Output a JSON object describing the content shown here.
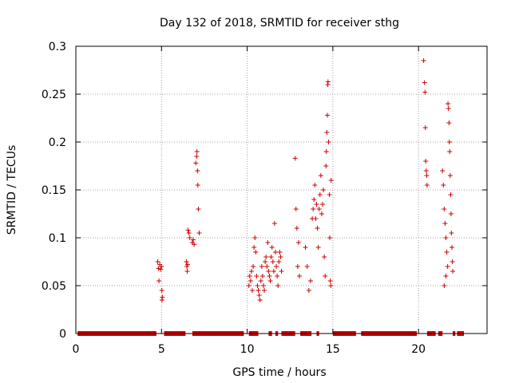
{
  "chart_data": {
    "type": "scatter",
    "title": "Day 132 of 2018, SRMTID for receiver sthg",
    "xlabel": "GPS time / hours",
    "ylabel": "SRMTID / TECUs",
    "xlim": [
      0,
      24
    ],
    "ylim": [
      0,
      0.3
    ],
    "grid": true,
    "xticks": [
      0,
      5,
      10,
      15,
      20
    ],
    "xtick_labels": [
      "0",
      "5",
      "10",
      "15",
      "20"
    ],
    "yticks": [
      0,
      0.05,
      0.1,
      0.15,
      0.2,
      0.25,
      0.3
    ],
    "ytick_labels": [
      "0",
      "0.05",
      "0.1",
      "0.15",
      "0.2",
      "0.25",
      "0.3"
    ],
    "marker": "+",
    "marker_color": "#cc0000",
    "zero_band_ranges": [
      [
        0.1,
        4.7
      ],
      [
        5.15,
        6.4
      ],
      [
        6.8,
        9.8
      ],
      [
        10.1,
        10.65
      ],
      [
        11.25,
        11.45
      ],
      [
        11.65,
        11.8
      ],
      [
        12.0,
        12.8
      ],
      [
        13.1,
        13.75
      ],
      [
        14.05,
        14.2
      ],
      [
        15.0,
        16.35
      ],
      [
        16.65,
        19.9
      ],
      [
        20.5,
        21.0
      ],
      [
        21.15,
        21.4
      ],
      [
        22.0,
        22.15
      ],
      [
        22.25,
        22.65
      ]
    ],
    "series": [
      {
        "name": "SRMTID",
        "points": [
          [
            4.78,
            0.075
          ],
          [
            4.82,
            0.068
          ],
          [
            4.85,
            0.055
          ],
          [
            4.9,
            0.072
          ],
          [
            4.95,
            0.067
          ],
          [
            5.0,
            0.07
          ],
          [
            5.02,
            0.045
          ],
          [
            5.05,
            0.038
          ],
          [
            5.03,
            0.035
          ],
          [
            6.45,
            0.075
          ],
          [
            6.48,
            0.07
          ],
          [
            6.5,
            0.065
          ],
          [
            6.52,
            0.072
          ],
          [
            6.55,
            0.108
          ],
          [
            6.6,
            0.105
          ],
          [
            6.65,
            0.1
          ],
          [
            6.8,
            0.095
          ],
          [
            6.85,
            0.098
          ],
          [
            6.9,
            0.093
          ],
          [
            7.0,
            0.178
          ],
          [
            7.05,
            0.185
          ],
          [
            7.07,
            0.19
          ],
          [
            7.1,
            0.17
          ],
          [
            7.12,
            0.155
          ],
          [
            7.15,
            0.13
          ],
          [
            7.2,
            0.105
          ],
          [
            10.1,
            0.05
          ],
          [
            10.15,
            0.06
          ],
          [
            10.2,
            0.055
          ],
          [
            10.25,
            0.065
          ],
          [
            10.3,
            0.045
          ],
          [
            10.35,
            0.07
          ],
          [
            10.4,
            0.09
          ],
          [
            10.45,
            0.1
          ],
          [
            10.5,
            0.085
          ],
          [
            10.55,
            0.06
          ],
          [
            10.6,
            0.05
          ],
          [
            10.65,
            0.045
          ],
          [
            10.7,
            0.04
          ],
          [
            10.75,
            0.035
          ],
          [
            10.8,
            0.055
          ],
          [
            10.85,
            0.07
          ],
          [
            10.9,
            0.06
          ],
          [
            10.95,
            0.05
          ],
          [
            11.0,
            0.045
          ],
          [
            11.05,
            0.075
          ],
          [
            11.1,
            0.08
          ],
          [
            11.15,
            0.07
          ],
          [
            11.2,
            0.095
          ],
          [
            11.25,
            0.065
          ],
          [
            11.3,
            0.06
          ],
          [
            11.35,
            0.055
          ],
          [
            11.4,
            0.08
          ],
          [
            11.45,
            0.09
          ],
          [
            11.5,
            0.075
          ],
          [
            11.55,
            0.065
          ],
          [
            11.6,
            0.115
          ],
          [
            11.65,
            0.085
          ],
          [
            11.7,
            0.07
          ],
          [
            11.75,
            0.06
          ],
          [
            11.8,
            0.05
          ],
          [
            11.85,
            0.075
          ],
          [
            11.9,
            0.085
          ],
          [
            11.95,
            0.08
          ],
          [
            12.0,
            0.065
          ],
          [
            12.8,
            0.183
          ],
          [
            12.85,
            0.13
          ],
          [
            12.9,
            0.11
          ],
          [
            12.95,
            0.07
          ],
          [
            13.0,
            0.095
          ],
          [
            13.05,
            0.06
          ],
          [
            13.4,
            0.09
          ],
          [
            13.5,
            0.07
          ],
          [
            13.6,
            0.045
          ],
          [
            13.7,
            0.055
          ],
          [
            13.8,
            0.12
          ],
          [
            13.85,
            0.13
          ],
          [
            13.9,
            0.14
          ],
          [
            13.95,
            0.155
          ],
          [
            14.0,
            0.12
          ],
          [
            14.05,
            0.135
          ],
          [
            14.1,
            0.11
          ],
          [
            14.15,
            0.09
          ],
          [
            14.2,
            0.13
          ],
          [
            14.25,
            0.145
          ],
          [
            14.3,
            0.165
          ],
          [
            14.35,
            0.125
          ],
          [
            14.4,
            0.135
          ],
          [
            14.45,
            0.15
          ],
          [
            14.5,
            0.08
          ],
          [
            14.55,
            0.06
          ],
          [
            14.6,
            0.175
          ],
          [
            14.62,
            0.19
          ],
          [
            14.65,
            0.21
          ],
          [
            14.68,
            0.228
          ],
          [
            14.7,
            0.26
          ],
          [
            14.72,
            0.263
          ],
          [
            14.75,
            0.2
          ],
          [
            14.8,
            0.145
          ],
          [
            14.82,
            0.1
          ],
          [
            14.85,
            0.055
          ],
          [
            14.88,
            0.05
          ],
          [
            14.9,
            0.16
          ],
          [
            20.3,
            0.285
          ],
          [
            20.35,
            0.262
          ],
          [
            20.38,
            0.252
          ],
          [
            20.4,
            0.215
          ],
          [
            20.42,
            0.18
          ],
          [
            20.45,
            0.17
          ],
          [
            20.48,
            0.165
          ],
          [
            20.5,
            0.155
          ],
          [
            21.4,
            0.17
          ],
          [
            21.45,
            0.155
          ],
          [
            21.5,
            0.13
          ],
          [
            21.55,
            0.115
          ],
          [
            21.6,
            0.1
          ],
          [
            21.65,
            0.085
          ],
          [
            21.7,
            0.07
          ],
          [
            21.72,
            0.24
          ],
          [
            21.75,
            0.235
          ],
          [
            21.78,
            0.22
          ],
          [
            21.8,
            0.2
          ],
          [
            21.82,
            0.19
          ],
          [
            21.85,
            0.165
          ],
          [
            21.88,
            0.145
          ],
          [
            21.9,
            0.125
          ],
          [
            21.92,
            0.105
          ],
          [
            21.95,
            0.09
          ],
          [
            21.98,
            0.075
          ],
          [
            22.0,
            0.065
          ],
          [
            21.5,
            0.05
          ],
          [
            21.6,
            0.06
          ]
        ]
      }
    ]
  }
}
